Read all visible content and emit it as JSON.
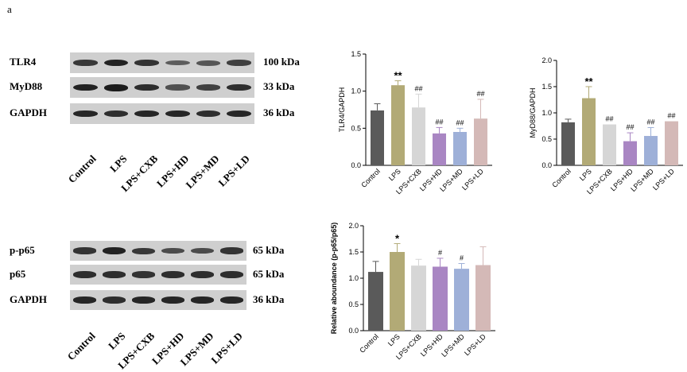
{
  "panel_label": "a",
  "blots": [
    {
      "id": "top",
      "lanes": [
        "Control",
        "LPS",
        "LPS+CXB",
        "LPS+HD",
        "LPS+MD",
        "LPS+LD"
      ],
      "rows": [
        {
          "label": "TLR4",
          "kda": "100 kDa",
          "intensity": [
            0.75,
            0.95,
            0.8,
            0.45,
            0.5,
            0.7
          ]
        },
        {
          "label": "MyD88",
          "kda": "33 kDa",
          "intensity": [
            0.95,
            1.0,
            0.85,
            0.55,
            0.7,
            0.85
          ]
        },
        {
          "label": "GAPDH",
          "kda": "36 kDa",
          "intensity": [
            0.9,
            0.85,
            0.9,
            0.9,
            0.85,
            0.9
          ]
        }
      ]
    },
    {
      "id": "bottom",
      "lanes": [
        "Control",
        "LPS",
        "LPS+CXB",
        "LPS+HD",
        "LPS+MD",
        "LPS+LD"
      ],
      "rows": [
        {
          "label": "p-p65",
          "kda": "65 kDa",
          "intensity": [
            0.8,
            0.95,
            0.75,
            0.6,
            0.6,
            0.8
          ]
        },
        {
          "label": "p65",
          "kda": "65 kDa",
          "intensity": [
            0.85,
            0.85,
            0.8,
            0.85,
            0.85,
            0.85
          ]
        },
        {
          "label": "GAPDH",
          "kda": "36 kDa",
          "intensity": [
            0.9,
            0.85,
            0.9,
            0.9,
            0.9,
            0.9
          ]
        }
      ]
    }
  ],
  "colors": {
    "Control": "#5a5a5a",
    "LPS": "#b2aa76",
    "LPS+CXB": "#d6d6d6",
    "LPS+HD": "#a986c3",
    "LPS+MD": "#9eb0d8",
    "LPS+LD": "#d4b9b7"
  },
  "chart_data": [
    {
      "id": "tlr4",
      "type": "bar",
      "title": "",
      "xlabel": "",
      "ylabel": "TLR4/GAPDH",
      "ylim": [
        0,
        1.5
      ],
      "yticks": [
        "0.0",
        "0.5",
        "1.0",
        "1.5"
      ],
      "categories": [
        "Control",
        "LPS",
        "LPS+CXB",
        "LPS+HD",
        "LPS+MD",
        "LPS+LD"
      ],
      "values": [
        0.74,
        1.08,
        0.78,
        0.43,
        0.45,
        0.63
      ],
      "errors": [
        0.09,
        0.06,
        0.18,
        0.08,
        0.05,
        0.26
      ],
      "annotations": [
        "",
        "**",
        "##",
        "##",
        "##",
        "##"
      ]
    },
    {
      "id": "myd88",
      "type": "bar",
      "title": "",
      "xlabel": "",
      "ylabel": "MyD88/GAPDH",
      "ylim": [
        0,
        2.0
      ],
      "yticks": [
        "0.0",
        "0.5",
        "1.0",
        "1.5",
        "2.0"
      ],
      "categories": [
        "Control",
        "LPS",
        "LPS+CXB",
        "LPS+HD",
        "LPS+MD",
        "LPS+LD"
      ],
      "values": [
        0.82,
        1.28,
        0.78,
        0.46,
        0.56,
        0.84
      ],
      "errors": [
        0.06,
        0.22,
        0.0,
        0.16,
        0.16,
        0.0
      ],
      "annotations": [
        "",
        "**",
        "##",
        "##",
        "##",
        "##"
      ]
    },
    {
      "id": "pp65",
      "type": "bar",
      "title": "",
      "xlabel": "",
      "ylabel": "Relative aboundance (p-p65/p65)",
      "ylabel_lines": [
        "Relative aboundance",
        "(p-p65/p65)"
      ],
      "ylim": [
        0,
        2.0
      ],
      "yticks": [
        "0.0",
        "0.5",
        "1.0",
        "1.5",
        "2.0"
      ],
      "categories": [
        "Control",
        "LPS",
        "LPS+CXB",
        "LPS+HD",
        "LPS+MD",
        "LPS+LD"
      ],
      "values": [
        1.12,
        1.5,
        1.24,
        1.22,
        1.18,
        1.25
      ],
      "errors": [
        0.2,
        0.16,
        0.12,
        0.16,
        0.1,
        0.35
      ],
      "annotations": [
        "",
        "*",
        "",
        "#",
        "#",
        ""
      ]
    }
  ]
}
